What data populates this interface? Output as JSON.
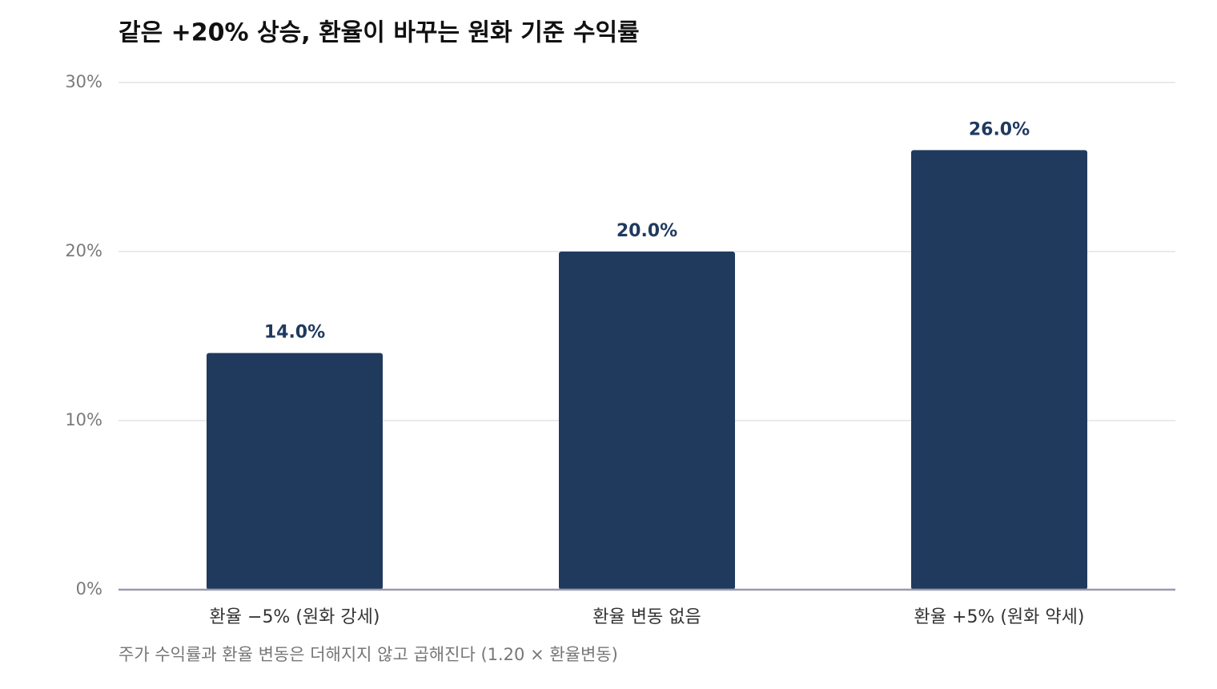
{
  "chart_data": {
    "type": "bar",
    "title": "같은 +20% 상승, 환율이 바꾸는 원화 기준 수익률",
    "categories": [
      "환율 −5% (원화 강세)",
      "환율 변동 없음",
      "환율 +5% (원화 약세)"
    ],
    "values": [
      14,
      20,
      26
    ],
    "value_labels": [
      "14.0%",
      "20.0%",
      "26.0%"
    ],
    "color": "#203a5e",
    "ylim": [
      0,
      30
    ],
    "yticks": [
      {
        "value": 0,
        "label": "0%"
      },
      {
        "value": 10,
        "label": "10%"
      },
      {
        "value": 20,
        "label": "20%"
      },
      {
        "value": 30,
        "label": "30%"
      }
    ],
    "grid": true,
    "note": "주가 수익률과 환율 변동은 더해지지 않고 곱해진다 (1.20 × 환율변동)"
  }
}
